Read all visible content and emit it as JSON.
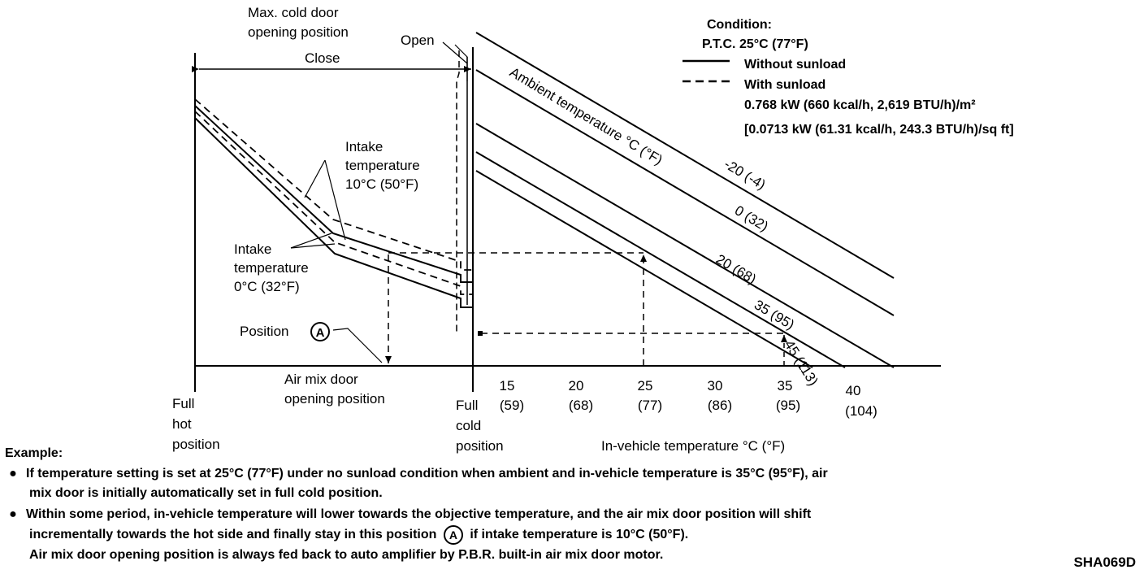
{
  "labels": {
    "max_cold_1": "Max. cold door",
    "max_cold_2": "opening position",
    "open": "Open",
    "close": "Close",
    "intake10_1": "Intake",
    "intake10_2": "temperature",
    "intake10_3": "10°C (50°F)",
    "intake0_1": "Intake",
    "intake0_2": "temperature",
    "intake0_3": "0°C (32°F)",
    "position": "Position",
    "marker": "A",
    "airmix_1": "Air mix door",
    "airmix_2": "opening position",
    "full_hot_1": "Full",
    "full_hot_2": "hot",
    "full_hot_3": "position",
    "full_cold_1": "Full",
    "full_cold_2": "cold",
    "full_cold_3": "position",
    "ambient": "Ambient temperature °C (°F)",
    "xaxis": "In-vehicle temperature °C (°F)"
  },
  "condition": {
    "title": "Condition:",
    "ptc": "P.T.C. 25°C (77°F)",
    "solid_label": "Without sunload",
    "dashed_label": "With sunload",
    "sunload_kw": "0.768 kW (660 kcal/h, 2,619 BTU/h)/m²",
    "sunload_sqft": "[0.0713 kW (61.31 kcal/h, 243.3 BTU/h)/sq ft]"
  },
  "chart_data": {
    "x_ticks": [
      {
        "value": "15",
        "sub": "(59)"
      },
      {
        "value": "20",
        "sub": "(68)"
      },
      {
        "value": "25",
        "sub": "(77)"
      },
      {
        "value": "30",
        "sub": "(86)"
      },
      {
        "value": "35",
        "sub": "(95)"
      },
      {
        "value": "40",
        "sub": "(104)"
      }
    ],
    "ambient_lines": [
      "-20 (-4)",
      "0 (32)",
      "20 (68)",
      "35 (95)",
      "45 (113)"
    ],
    "intake_curves": [
      "10°C (50°F)",
      "0°C (32°F)"
    ]
  },
  "example": {
    "heading": "Example:",
    "bullet": "●",
    "item1_line1": "If temperature setting is set at 25°C (77°F) under no sunload condition when ambient and in-vehicle temperature is 35°C (95°F), air",
    "item1_line2": "mix door is initially automatically set in full cold position.",
    "item2_line1": "Within some period, in-vehicle temperature will lower towards the objective temperature, and the air mix door position will shift",
    "item2_line2a": "incrementally towards the hot side and finally stay in this position",
    "item2_marker": "A",
    "item2_line2b": "if intake temperature is 10°C (50°F).",
    "item2_line3": "Air mix door opening position is always fed back to auto amplifier by P.B.R. built-in air mix door motor."
  },
  "figure_code": "SHA069D"
}
